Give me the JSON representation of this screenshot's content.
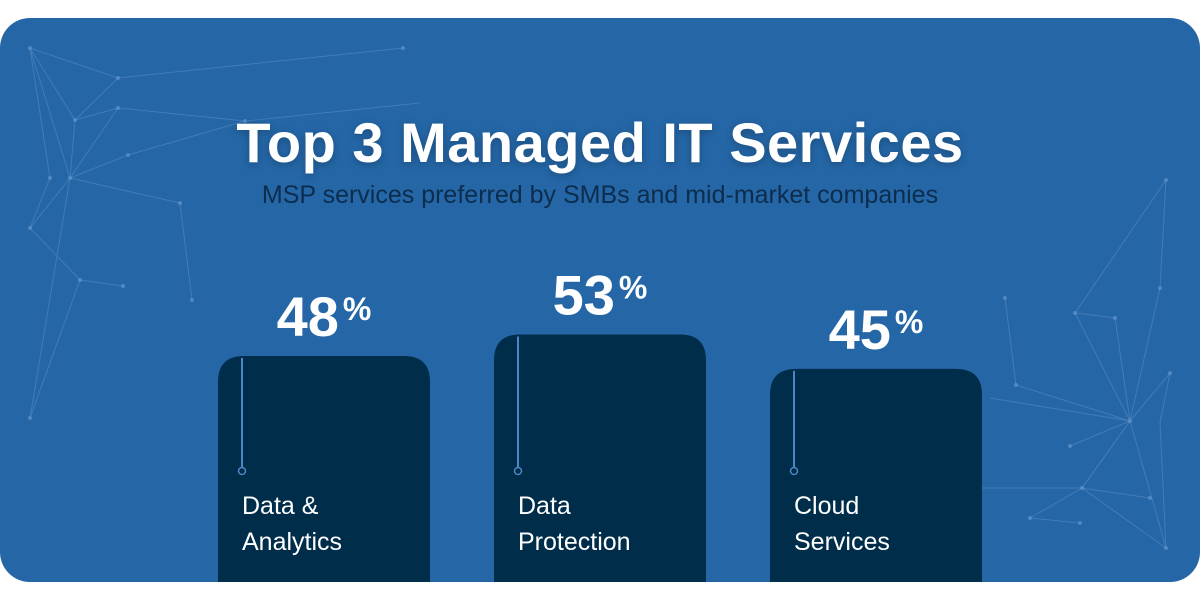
{
  "title": "Top 3 Managed IT Services",
  "subtitle": "MSP services preferred by SMBs and mid-market companies",
  "colors": {
    "background": "#2466a6",
    "bar": "#002d4a",
    "value_text": "#ffffff",
    "label_text": "#ffffff",
    "connector": "#4d86c4"
  },
  "chart_data": {
    "type": "bar",
    "title": "Top 3 Managed IT Services",
    "subtitle": "MSP services preferred by SMBs and mid-market companies",
    "categories": [
      [
        "Data &",
        "Analytics"
      ],
      [
        "Data",
        "Protection"
      ],
      [
        "Cloud",
        "Services"
      ]
    ],
    "values": [
      48,
      53,
      45
    ],
    "value_suffix": "%",
    "xlabel": "",
    "ylabel": "",
    "grid": false,
    "legend": "none"
  }
}
